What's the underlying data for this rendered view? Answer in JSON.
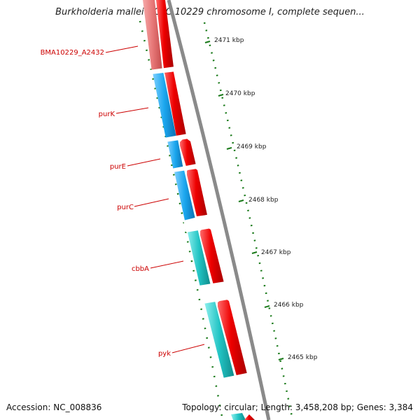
{
  "title": "Burkholderia mallei NCTC 10229 chromosome I, complete sequen...",
  "accession_text": "Accession: NC_008836",
  "summary_text": "Topology: circular; Length: 3,458,208 bp; Genes: 3,384",
  "genes": [
    {
      "name": "BMA10229_A2432"
    },
    {
      "name": "purK"
    },
    {
      "name": "purE"
    },
    {
      "name": "purC"
    },
    {
      "name": "cbbA"
    },
    {
      "name": "pyk"
    }
  ],
  "kbp_ticks": [
    "2471 kbp",
    "2470 kbp",
    "2469 kbp",
    "2468 kbp",
    "2467 kbp",
    "2466 kbp",
    "2465 kbp"
  ],
  "colors": {
    "gene_label": "#cc0000",
    "cds_forward": "#ee0000",
    "gene_blue": "#1aa6ee",
    "gene_teal": "#22c4c4",
    "gene_pink": "#e77878",
    "backbone": "#8a8a8a",
    "ticks": "#1a7a1a"
  }
}
